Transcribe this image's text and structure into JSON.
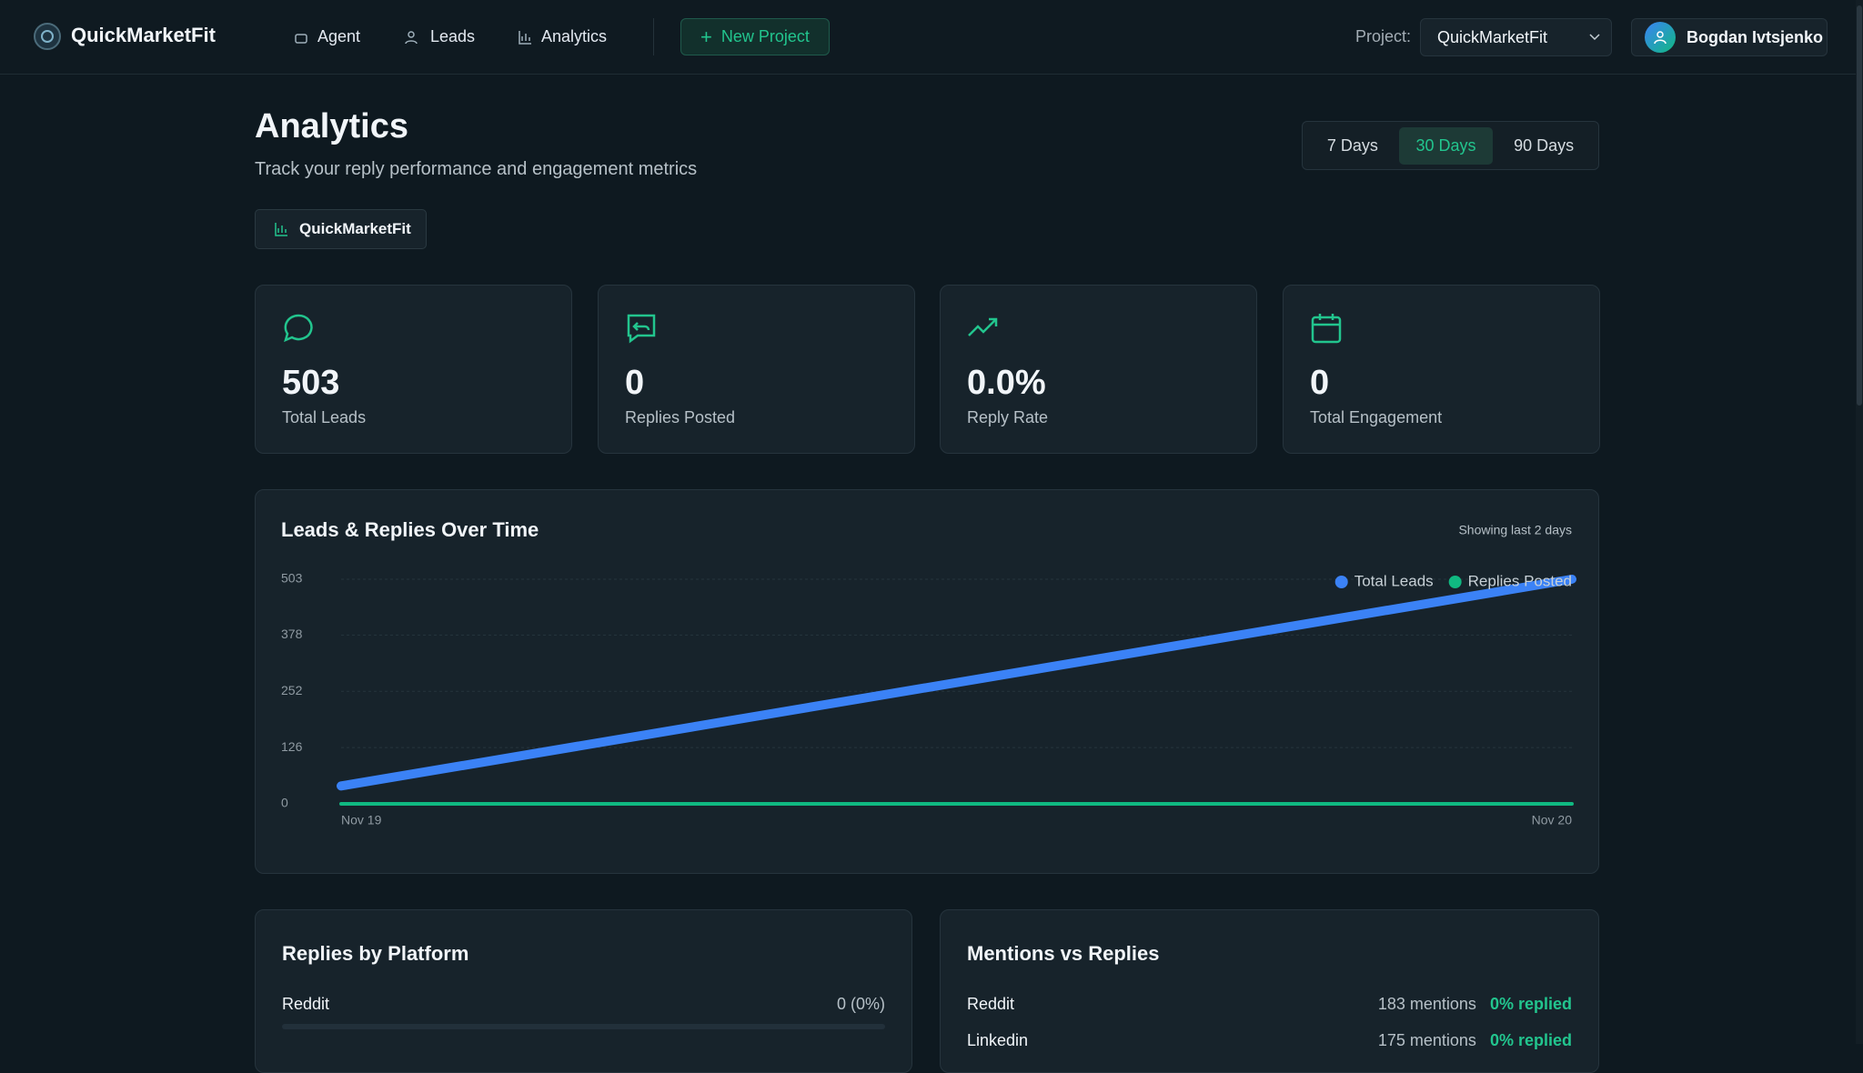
{
  "nav": {
    "brand": "QuickMarketFit",
    "items": [
      "Agent",
      "Leads",
      "Analytics"
    ],
    "new_project": "New Project",
    "project_label": "Project:",
    "project_value": "QuickMarketFit",
    "user": "Bogdan Ivtsjenko"
  },
  "header": {
    "title": "Analytics",
    "subtitle": "Track your reply performance and engagement metrics",
    "ranges": [
      "7 Days",
      "30 Days",
      "90 Days"
    ],
    "project_chip": "QuickMarketFit"
  },
  "stats": [
    {
      "value": "503",
      "label": "Total Leads"
    },
    {
      "value": "0",
      "label": "Replies Posted"
    },
    {
      "value": "0.0%",
      "label": "Reply Rate"
    },
    {
      "value": "0",
      "label": "Total Engagement"
    }
  ],
  "chart_data": {
    "type": "line",
    "title": "Leads & Replies Over Time",
    "subtitle": "Showing last 2 days",
    "categories": [
      "Nov 19",
      "Nov 20"
    ],
    "series": [
      {
        "name": "Total Leads",
        "color": "#3b82f6",
        "values": [
          40,
          503
        ]
      },
      {
        "name": "Replies Posted",
        "color": "#10b981",
        "values": [
          0,
          0
        ]
      }
    ],
    "ylim": [
      0,
      503
    ],
    "yticks": [
      0,
      126,
      252,
      378,
      503
    ],
    "grid": true,
    "legend": "top-right"
  },
  "replies_by_platform": {
    "title": "Replies by Platform",
    "rows": [
      {
        "platform": "Reddit",
        "value": "0 (0%)"
      }
    ]
  },
  "mentions_vs_replies": {
    "title": "Mentions vs Replies",
    "rows": [
      {
        "platform": "Reddit",
        "mentions": "183 mentions",
        "replied": "0% replied"
      },
      {
        "platform": "Linkedin",
        "mentions": "175 mentions",
        "replied": "0% replied"
      }
    ]
  }
}
